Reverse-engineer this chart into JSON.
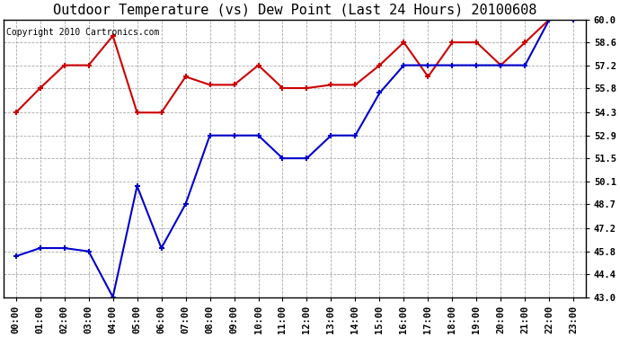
{
  "title": "Outdoor Temperature (vs) Dew Point (Last 24 Hours) 20100608",
  "copyright": "Copyright 2010 Cartronics.com",
  "x_labels": [
    "00:00",
    "01:00",
    "02:00",
    "03:00",
    "04:00",
    "05:00",
    "06:00",
    "07:00",
    "08:00",
    "09:00",
    "10:00",
    "11:00",
    "12:00",
    "13:00",
    "14:00",
    "15:00",
    "16:00",
    "17:00",
    "18:00",
    "19:00",
    "20:00",
    "21:00",
    "22:00",
    "23:00"
  ],
  "temp_values": [
    54.3,
    55.8,
    57.2,
    57.2,
    59.0,
    54.3,
    54.3,
    56.5,
    56.0,
    56.0,
    57.2,
    55.8,
    55.8,
    56.0,
    56.0,
    57.2,
    58.6,
    56.5,
    58.6,
    58.6,
    57.2,
    58.6,
    60.0,
    60.0
  ],
  "dew_values": [
    45.5,
    46.0,
    46.0,
    45.8,
    43.0,
    49.8,
    46.0,
    48.7,
    52.9,
    52.9,
    52.9,
    51.5,
    51.5,
    52.9,
    52.9,
    55.5,
    57.2,
    57.2,
    57.2,
    57.2,
    57.2,
    57.2,
    60.0,
    60.0
  ],
  "temp_color": "#cc0000",
  "dew_color": "#0000cc",
  "ylim_min": 43.0,
  "ylim_max": 60.0,
  "yticks": [
    43.0,
    44.4,
    45.8,
    47.2,
    48.7,
    50.1,
    51.5,
    52.9,
    54.3,
    55.8,
    57.2,
    58.6,
    60.0
  ],
  "background_color": "#ffffff",
  "grid_color": "#aaaaaa",
  "title_fontsize": 11,
  "copyright_fontsize": 7,
  "tick_fontsize": 7.5
}
